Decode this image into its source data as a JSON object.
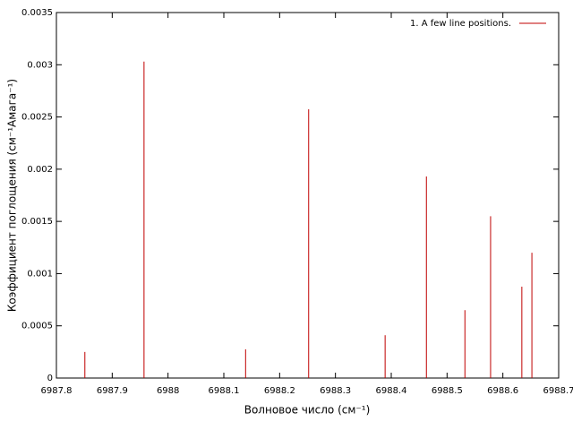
{
  "chart_data": {
    "type": "impulse",
    "xlabel": "Волновое число (см⁻¹)",
    "ylabel": "Коэффициент поглощения (см⁻¹Амага⁻¹)",
    "xlim": [
      6987.8,
      6988.7
    ],
    "xticks": [
      6987.8,
      6987.9,
      6988,
      6988.1,
      6988.2,
      6988.3,
      6988.4,
      6988.5,
      6988.6,
      6988.7
    ],
    "ylim": [
      0,
      0.0035
    ],
    "yticks": [
      0,
      0.0005,
      0.001,
      0.0015,
      0.002,
      0.0025,
      0.003,
      0.0035
    ],
    "legend": "upper right",
    "series": [
      {
        "name": "1. A few line positions.",
        "color": "#c00000",
        "x": [
          6987.851,
          6987.957,
          6988.139,
          6988.252,
          6988.389,
          6988.463,
          6988.532,
          6988.578,
          6988.634,
          6988.652
        ],
        "values": [
          0.00025,
          0.00303,
          0.000275,
          0.002574,
          0.00041,
          0.00193,
          0.00065,
          0.00155,
          0.000875,
          0.0012
        ]
      }
    ]
  }
}
